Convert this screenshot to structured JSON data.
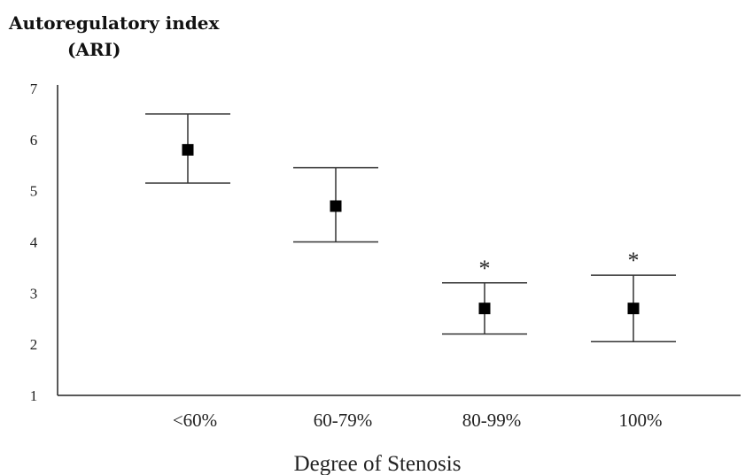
{
  "chart_data": {
    "type": "scatter",
    "ylabel_lines": [
      "Autoregulatory index",
      "(ARI)"
    ],
    "xlabel": "Degree of Stenosis",
    "ylim": [
      1,
      7
    ],
    "yticks": [
      1,
      2,
      3,
      4,
      5,
      6,
      7
    ],
    "grid": false,
    "categories": [
      "<60%",
      "60-79%",
      "80-99%",
      "100%"
    ],
    "series": [
      {
        "mean": [
          5.8,
          4.7,
          2.7,
          2.7
        ],
        "upper": [
          6.5,
          5.45,
          3.2,
          3.35
        ],
        "lower": [
          5.15,
          4.0,
          2.2,
          2.05
        ]
      }
    ],
    "annotations": [
      "",
      "",
      "*",
      "*"
    ]
  }
}
